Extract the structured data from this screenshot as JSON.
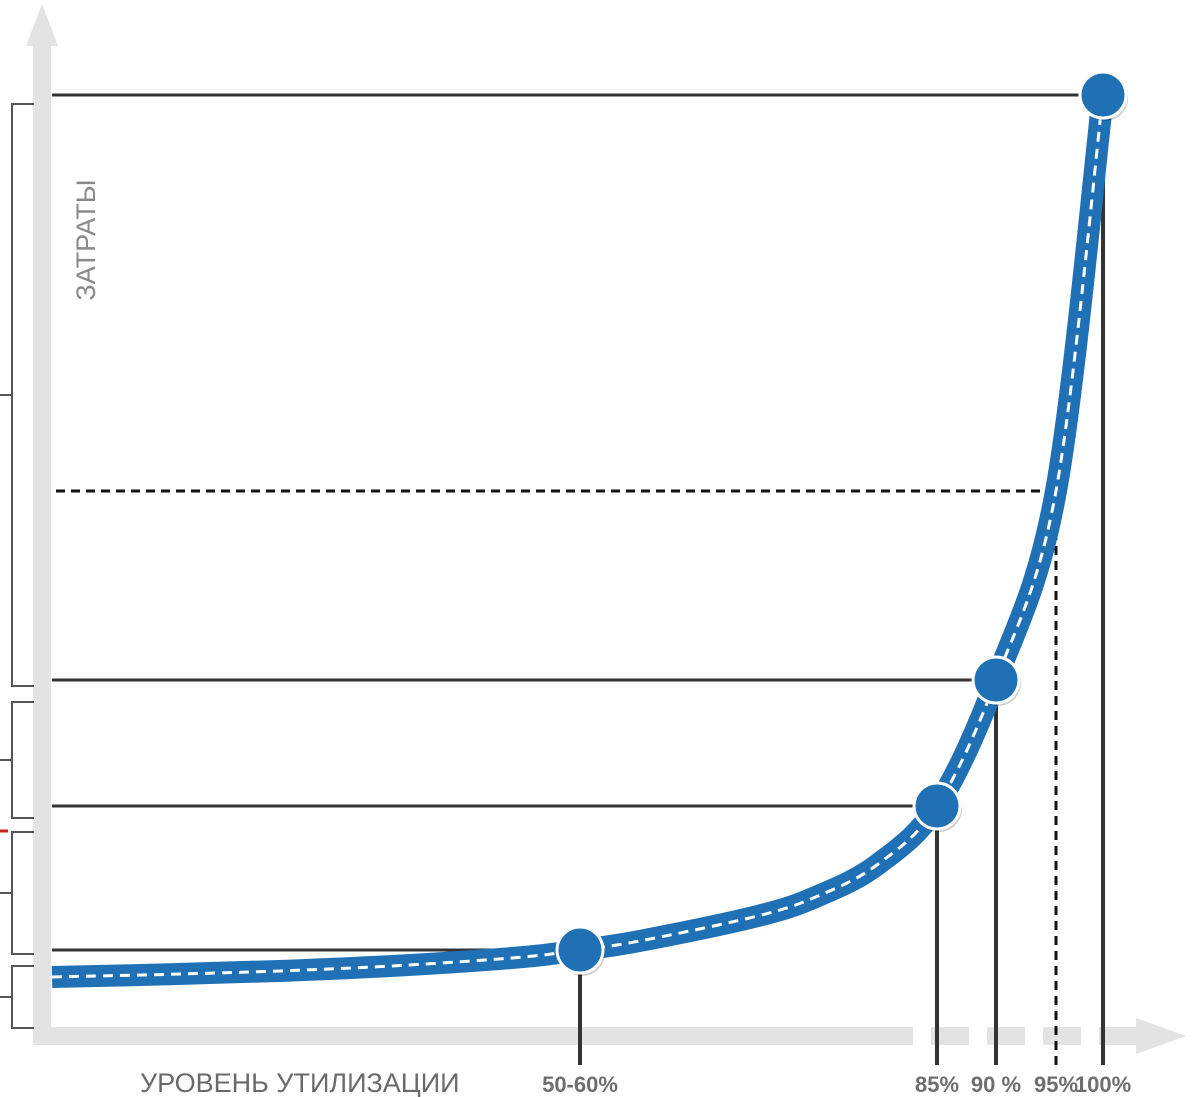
{
  "chart_data": {
    "type": "line",
    "ylabel": "ЗАТРАТЫ",
    "xlabel": "УРОВЕНЬ УТИЛИЗАЦИИ",
    "x_ticks": [
      {
        "label": "50-60%",
        "x": 55
      },
      {
        "label": "85%",
        "x": 85
      },
      {
        "label": "90 %",
        "x": 90
      },
      {
        "label": "95%",
        "x": 95
      },
      {
        "label": "100%",
        "x": 100
      }
    ],
    "series": [
      {
        "points": [
          {
            "x": 10,
            "y": 2
          },
          {
            "x": 20,
            "y": 2.3
          },
          {
            "x": 30,
            "y": 2.7
          },
          {
            "x": 40,
            "y": 3.3
          },
          {
            "x": 50,
            "y": 4.2
          },
          {
            "x": 55,
            "y": 5
          },
          {
            "x": 60,
            "y": 6
          },
          {
            "x": 70,
            "y": 8.8
          },
          {
            "x": 75,
            "y": 11
          },
          {
            "x": 80,
            "y": 14.5
          },
          {
            "x": 85,
            "y": 21
          },
          {
            "x": 90,
            "y": 35
          },
          {
            "x": 95,
            "y": 56
          },
          {
            "x": 100,
            "y": 100
          }
        ]
      }
    ],
    "markers": [
      {
        "x": 55,
        "y": 5
      },
      {
        "x": 85,
        "y": 21
      },
      {
        "x": 90,
        "y": 35
      },
      {
        "x": 100,
        "y": 100
      }
    ],
    "dashed_guide": {
      "x": 95,
      "y": 56
    },
    "xlim": [
      10,
      100
    ],
    "ylim": [
      0,
      100
    ],
    "colors": {
      "curve": "#1f70b4",
      "axis": "#e3e3e3",
      "guide": "#333333"
    }
  }
}
